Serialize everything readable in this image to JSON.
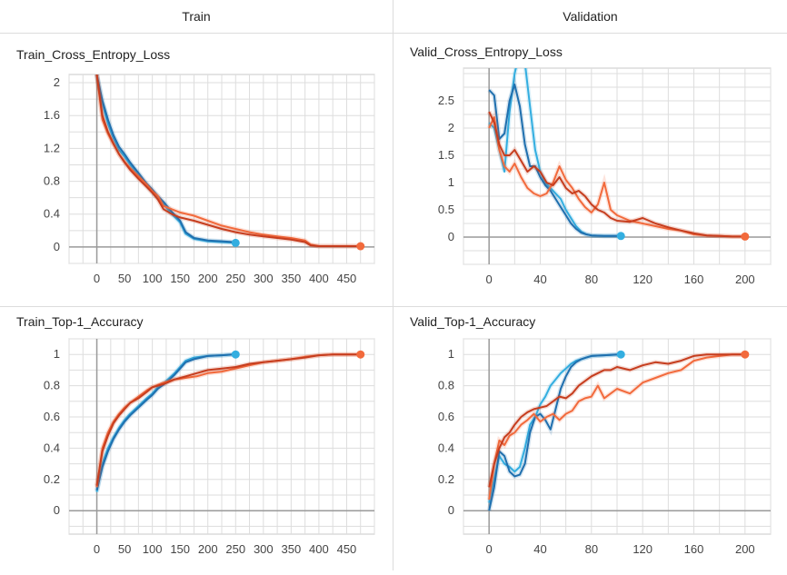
{
  "headers": {
    "train": "Train",
    "validation": "Validation"
  },
  "chart_data": [
    {
      "type": "line",
      "title": "Train_Cross_Entropy_Loss",
      "xlim": [
        -50,
        500
      ],
      "ylim": [
        -0.2,
        2.1
      ],
      "xticks": [
        0,
        50,
        100,
        150,
        200,
        250,
        300,
        350,
        400,
        450
      ],
      "yticks": [
        0,
        0.4,
        0.8,
        1.2,
        1.6,
        2
      ],
      "ytick_labels": [
        "0",
        "0.4",
        "0.8",
        "1.2",
        "1.6",
        "2"
      ],
      "grid": true,
      "series": [
        {
          "color": "#33aee0",
          "end_marker": true,
          "x": [
            0,
            10,
            20,
            30,
            40,
            50,
            60,
            75,
            90,
            100,
            110,
            120,
            135,
            150,
            160,
            175,
            200,
            225,
            250
          ],
          "y": [
            2.1,
            1.75,
            1.5,
            1.32,
            1.18,
            1.1,
            1.0,
            0.88,
            0.75,
            0.67,
            0.6,
            0.52,
            0.4,
            0.3,
            0.16,
            0.1,
            0.07,
            0.06,
            0.05
          ]
        },
        {
          "color": "#1f6fae",
          "end_marker": false,
          "x": [
            0,
            10,
            20,
            30,
            40,
            50,
            60,
            75,
            90,
            100,
            110,
            120,
            135,
            150,
            160,
            175,
            200,
            225,
            245
          ],
          "y": [
            2.1,
            1.78,
            1.55,
            1.36,
            1.22,
            1.13,
            1.03,
            0.9,
            0.77,
            0.7,
            0.62,
            0.55,
            0.43,
            0.32,
            0.18,
            0.11,
            0.08,
            0.07,
            0.06
          ]
        },
        {
          "color": "#f26a3c",
          "end_marker": true,
          "x": [
            0,
            10,
            20,
            30,
            40,
            50,
            60,
            75,
            90,
            100,
            110,
            120,
            135,
            150,
            175,
            200,
            225,
            250,
            275,
            300,
            325,
            350,
            375,
            385,
            400,
            425,
            450,
            475
          ],
          "y": [
            2.1,
            1.55,
            1.38,
            1.25,
            1.13,
            1.04,
            0.96,
            0.86,
            0.76,
            0.68,
            0.62,
            0.5,
            0.46,
            0.42,
            0.38,
            0.32,
            0.26,
            0.22,
            0.18,
            0.15,
            0.13,
            0.11,
            0.08,
            0.03,
            0.01,
            0.01,
            0.01,
            0.01
          ]
        },
        {
          "color": "#c63d1e",
          "end_marker": false,
          "x": [
            0,
            10,
            20,
            30,
            40,
            50,
            60,
            75,
            90,
            100,
            110,
            120,
            135,
            150,
            175,
            200,
            225,
            250,
            275,
            300,
            325,
            350,
            375,
            385,
            400,
            425,
            450,
            470
          ],
          "y": [
            2.1,
            1.6,
            1.4,
            1.26,
            1.13,
            1.03,
            0.94,
            0.83,
            0.73,
            0.66,
            0.58,
            0.46,
            0.4,
            0.36,
            0.32,
            0.27,
            0.22,
            0.18,
            0.15,
            0.13,
            0.11,
            0.09,
            0.06,
            0.02,
            0.01,
            0.01,
            0.01,
            0.01
          ]
        }
      ]
    },
    {
      "type": "line",
      "title": "Valid_Cross_Entropy_Loss",
      "xlim": [
        -20,
        220
      ],
      "ylim": [
        -0.5,
        3.1
      ],
      "xticks": [
        0,
        40,
        80,
        120,
        160,
        200
      ],
      "yticks": [
        0,
        0.5,
        1,
        1.5,
        2,
        2.5
      ],
      "ytick_labels": [
        "0",
        "0.5",
        "1",
        "1.5",
        "2",
        "2.5"
      ],
      "grid": true,
      "series": [
        {
          "color": "#33aee0",
          "end_marker": true,
          "x": [
            0,
            4,
            8,
            12,
            16,
            20,
            24,
            28,
            32,
            36,
            40,
            44,
            48,
            52,
            56,
            60,
            64,
            68,
            72,
            76,
            80,
            90,
            103
          ],
          "y": [
            2.1,
            2.0,
            1.6,
            1.2,
            2.3,
            3.0,
            3.4,
            3.2,
            2.4,
            1.6,
            1.2,
            1.0,
            0.9,
            0.8,
            0.7,
            0.5,
            0.35,
            0.2,
            0.1,
            0.05,
            0.03,
            0.02,
            0.02
          ]
        },
        {
          "color": "#1f6fae",
          "end_marker": false,
          "x": [
            0,
            4,
            8,
            12,
            16,
            20,
            24,
            28,
            32,
            36,
            40,
            44,
            48,
            52,
            56,
            60,
            64,
            68,
            72,
            76,
            80,
            90,
            100
          ],
          "y": [
            2.7,
            2.6,
            1.8,
            1.9,
            2.5,
            2.8,
            2.4,
            1.7,
            1.3,
            1.3,
            1.1,
            0.95,
            0.85,
            0.7,
            0.55,
            0.4,
            0.25,
            0.15,
            0.08,
            0.05,
            0.03,
            0.02,
            0.02
          ]
        },
        {
          "color": "#f26a3c",
          "end_marker": true,
          "x": [
            0,
            4,
            8,
            12,
            16,
            20,
            25,
            30,
            35,
            40,
            45,
            50,
            55,
            60,
            65,
            70,
            75,
            80,
            85,
            90,
            95,
            100,
            110,
            120,
            130,
            140,
            150,
            160,
            170,
            180,
            190,
            200
          ],
          "y": [
            2.0,
            2.2,
            1.6,
            1.3,
            1.2,
            1.35,
            1.1,
            0.9,
            0.8,
            0.75,
            0.8,
            1.0,
            1.3,
            1.05,
            0.9,
            0.7,
            0.55,
            0.45,
            0.6,
            1.0,
            0.5,
            0.4,
            0.3,
            0.25,
            0.2,
            0.15,
            0.12,
            0.05,
            0.03,
            0.02,
            0.01,
            0.01
          ]
        },
        {
          "color": "#c63d1e",
          "end_marker": false,
          "x": [
            0,
            4,
            8,
            12,
            16,
            20,
            25,
            30,
            35,
            40,
            45,
            50,
            55,
            60,
            65,
            70,
            75,
            80,
            85,
            90,
            95,
            100,
            110,
            120,
            130,
            140,
            150,
            160,
            170,
            180,
            190,
            198
          ],
          "y": [
            2.3,
            2.1,
            1.7,
            1.5,
            1.5,
            1.6,
            1.4,
            1.2,
            1.3,
            1.2,
            1.0,
            0.95,
            1.1,
            0.9,
            0.8,
            0.85,
            0.75,
            0.6,
            0.5,
            0.45,
            0.35,
            0.3,
            0.28,
            0.35,
            0.25,
            0.18,
            0.12,
            0.07,
            0.03,
            0.02,
            0.01,
            0.01
          ]
        }
      ]
    },
    {
      "type": "line",
      "title": "Train_Top-1_Accuracy",
      "xlim": [
        -50,
        500
      ],
      "ylim": [
        -0.15,
        1.1
      ],
      "xticks": [
        0,
        50,
        100,
        150,
        200,
        250,
        300,
        350,
        400,
        450
      ],
      "yticks": [
        0,
        0.2,
        0.4,
        0.6,
        0.8,
        1
      ],
      "ytick_labels": [
        "0",
        "0.2",
        "0.4",
        "0.6",
        "0.8",
        "1"
      ],
      "grid": true,
      "series": [
        {
          "color": "#33aee0",
          "end_marker": true,
          "x": [
            0,
            10,
            20,
            30,
            40,
            50,
            60,
            75,
            90,
            100,
            110,
            125,
            140,
            150,
            160,
            175,
            200,
            225,
            250
          ],
          "y": [
            0.12,
            0.3,
            0.4,
            0.47,
            0.53,
            0.58,
            0.62,
            0.67,
            0.72,
            0.75,
            0.79,
            0.83,
            0.88,
            0.92,
            0.96,
            0.98,
            0.99,
            0.995,
            1.0
          ]
        },
        {
          "color": "#1f6fae",
          "end_marker": false,
          "x": [
            0,
            10,
            20,
            30,
            40,
            50,
            60,
            75,
            90,
            100,
            110,
            125,
            140,
            150,
            160,
            175,
            200,
            225,
            245
          ],
          "y": [
            0.13,
            0.28,
            0.38,
            0.46,
            0.52,
            0.57,
            0.61,
            0.66,
            0.71,
            0.74,
            0.78,
            0.82,
            0.87,
            0.91,
            0.95,
            0.97,
            0.99,
            0.995,
            1.0
          ]
        },
        {
          "color": "#f26a3c",
          "end_marker": true,
          "x": [
            0,
            10,
            20,
            30,
            40,
            50,
            60,
            75,
            90,
            100,
            120,
            140,
            160,
            180,
            200,
            225,
            250,
            275,
            300,
            325,
            350,
            375,
            400,
            425,
            450,
            475
          ],
          "y": [
            0.15,
            0.4,
            0.5,
            0.57,
            0.62,
            0.66,
            0.69,
            0.73,
            0.77,
            0.79,
            0.82,
            0.84,
            0.85,
            0.86,
            0.88,
            0.89,
            0.91,
            0.93,
            0.95,
            0.96,
            0.97,
            0.985,
            0.995,
            1.0,
            1.0,
            1.0
          ]
        },
        {
          "color": "#c63d1e",
          "end_marker": false,
          "x": [
            0,
            10,
            20,
            30,
            40,
            50,
            60,
            75,
            90,
            100,
            120,
            140,
            160,
            180,
            200,
            225,
            250,
            275,
            300,
            325,
            350,
            375,
            400,
            425,
            450,
            470
          ],
          "y": [
            0.16,
            0.38,
            0.48,
            0.56,
            0.61,
            0.65,
            0.69,
            0.72,
            0.76,
            0.79,
            0.81,
            0.84,
            0.86,
            0.88,
            0.9,
            0.91,
            0.92,
            0.94,
            0.95,
            0.96,
            0.97,
            0.98,
            0.995,
            1.0,
            1.0,
            1.0
          ]
        }
      ]
    },
    {
      "type": "line",
      "title": "Valid_Top-1_Accuracy",
      "xlim": [
        -20,
        220
      ],
      "ylim": [
        -0.15,
        1.1
      ],
      "xticks": [
        0,
        40,
        80,
        120,
        160,
        200
      ],
      "yticks": [
        0,
        0.2,
        0.4,
        0.6,
        0.8,
        1
      ],
      "ytick_labels": [
        "0",
        "0.2",
        "0.4",
        "0.6",
        "0.8",
        "1"
      ],
      "grid": true,
      "series": [
        {
          "color": "#33aee0",
          "end_marker": true,
          "x": [
            0,
            4,
            8,
            12,
            16,
            20,
            24,
            28,
            32,
            36,
            40,
            44,
            48,
            52,
            56,
            60,
            64,
            68,
            72,
            76,
            80,
            90,
            103
          ],
          "y": [
            0.05,
            0.2,
            0.35,
            0.3,
            0.28,
            0.25,
            0.28,
            0.4,
            0.55,
            0.6,
            0.68,
            0.73,
            0.8,
            0.84,
            0.88,
            0.91,
            0.94,
            0.96,
            0.97,
            0.98,
            0.99,
            0.995,
            1.0
          ]
        },
        {
          "color": "#1f6fae",
          "end_marker": false,
          "x": [
            0,
            4,
            8,
            12,
            16,
            20,
            24,
            28,
            32,
            36,
            40,
            44,
            48,
            52,
            56,
            60,
            64,
            68,
            72,
            76,
            80,
            90,
            100
          ],
          "y": [
            0.0,
            0.15,
            0.38,
            0.35,
            0.25,
            0.22,
            0.23,
            0.3,
            0.5,
            0.6,
            0.62,
            0.58,
            0.52,
            0.65,
            0.78,
            0.86,
            0.92,
            0.95,
            0.97,
            0.98,
            0.99,
            0.995,
            1.0
          ]
        },
        {
          "color": "#f26a3c",
          "end_marker": true,
          "x": [
            0,
            4,
            8,
            12,
            16,
            20,
            25,
            30,
            35,
            40,
            45,
            50,
            55,
            60,
            65,
            70,
            75,
            80,
            85,
            90,
            95,
            100,
            110,
            120,
            130,
            140,
            150,
            160,
            170,
            180,
            190,
            200
          ],
          "y": [
            0.07,
            0.3,
            0.45,
            0.42,
            0.48,
            0.5,
            0.55,
            0.58,
            0.62,
            0.57,
            0.6,
            0.62,
            0.58,
            0.62,
            0.64,
            0.7,
            0.72,
            0.73,
            0.8,
            0.72,
            0.75,
            0.78,
            0.75,
            0.82,
            0.85,
            0.88,
            0.9,
            0.96,
            0.98,
            0.99,
            1.0,
            1.0
          ]
        },
        {
          "color": "#c63d1e",
          "end_marker": false,
          "x": [
            0,
            4,
            8,
            12,
            16,
            20,
            25,
            30,
            35,
            40,
            45,
            50,
            55,
            60,
            65,
            70,
            75,
            80,
            85,
            90,
            95,
            100,
            110,
            120,
            130,
            140,
            150,
            160,
            170,
            180,
            190,
            198
          ],
          "y": [
            0.15,
            0.3,
            0.4,
            0.47,
            0.5,
            0.55,
            0.6,
            0.63,
            0.65,
            0.66,
            0.67,
            0.7,
            0.73,
            0.72,
            0.75,
            0.8,
            0.83,
            0.86,
            0.88,
            0.9,
            0.9,
            0.92,
            0.9,
            0.93,
            0.95,
            0.94,
            0.96,
            0.99,
            1.0,
            1.0,
            1.0,
            1.0
          ]
        }
      ]
    }
  ]
}
